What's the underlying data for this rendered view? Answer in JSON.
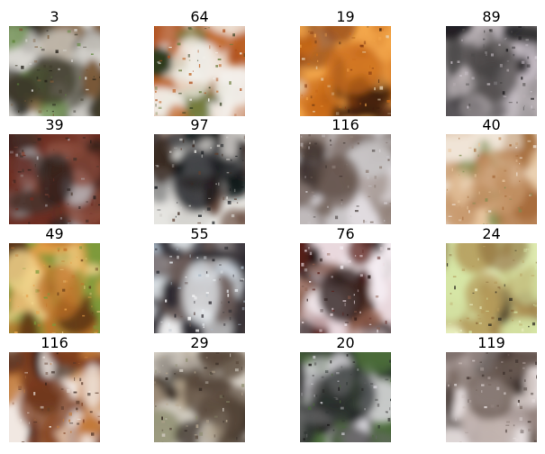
{
  "grid": {
    "columns": 4,
    "rows": 4,
    "cells": [
      {
        "label": "3",
        "palette": [
          "#3e3a2a",
          "#d9d7d2",
          "#5f8a3c",
          "#7c5b39",
          "#201d16"
        ]
      },
      {
        "label": "64",
        "palette": [
          "#f4f1ec",
          "#b0501c",
          "#2d3a1b",
          "#6d7d3e",
          "#c26a2c"
        ]
      },
      {
        "label": "19",
        "palette": [
          "#c96a18",
          "#f3a64b",
          "#3a1d0d",
          "#e8d6b8",
          "#8a3f12"
        ]
      },
      {
        "label": "89",
        "palette": [
          "#4d4a4a",
          "#b9b1b5",
          "#1f1d20",
          "#8f8c8e",
          "#d6cdd6"
        ]
      },
      {
        "label": "39",
        "palette": [
          "#2a1f1c",
          "#6d2d22",
          "#b6b0b3",
          "#46332b",
          "#8a4a3a"
        ]
      },
      {
        "label": "97",
        "palette": [
          "#111419",
          "#e6e5e1",
          "#3a2a22",
          "#5e4032",
          "#c9c6c2"
        ]
      },
      {
        "label": "116",
        "palette": [
          "#6b5a52",
          "#c8c4c6",
          "#2f2624",
          "#92837b",
          "#e3dde2"
        ]
      },
      {
        "label": "40",
        "palette": [
          "#c89a6e",
          "#f0e4d6",
          "#7a8c4c",
          "#a86d3c",
          "#e8c7a0"
        ]
      },
      {
        "label": "49",
        "palette": [
          "#c2732a",
          "#7d9a3a",
          "#e8a24a",
          "#5a3212",
          "#f0d28a"
        ]
      },
      {
        "label": "55",
        "palette": [
          "#e8edf1",
          "#2c2a30",
          "#6b5b58",
          "#aab8c6",
          "#ffffff"
        ]
      },
      {
        "label": "76",
        "palette": [
          "#241311",
          "#e9d8dd",
          "#5b1f1a",
          "#8a5a48",
          "#f5eef3"
        ]
      },
      {
        "label": "24",
        "palette": [
          "#b49a5a",
          "#d6e6a6",
          "#23201a",
          "#8a6a3a",
          "#eef2c6"
        ]
      },
      {
        "label": "116",
        "palette": [
          "#7a3a1c",
          "#f1e8e2",
          "#2a1a12",
          "#c27a3a",
          "#5a3a2a"
        ]
      },
      {
        "label": "29",
        "palette": [
          "#5a4a3c",
          "#d8d2c8",
          "#8a8a6a",
          "#2e241e",
          "#b8a890"
        ]
      },
      {
        "label": "20",
        "palette": [
          "#2c3230",
          "#4a6a3a",
          "#d8d6dc",
          "#1c1a1a",
          "#6a6a6a"
        ]
      },
      {
        "label": "119",
        "palette": [
          "#6a5a52",
          "#e6dede",
          "#3a2e2a",
          "#9a8a86",
          "#c2b4b0"
        ]
      }
    ]
  }
}
